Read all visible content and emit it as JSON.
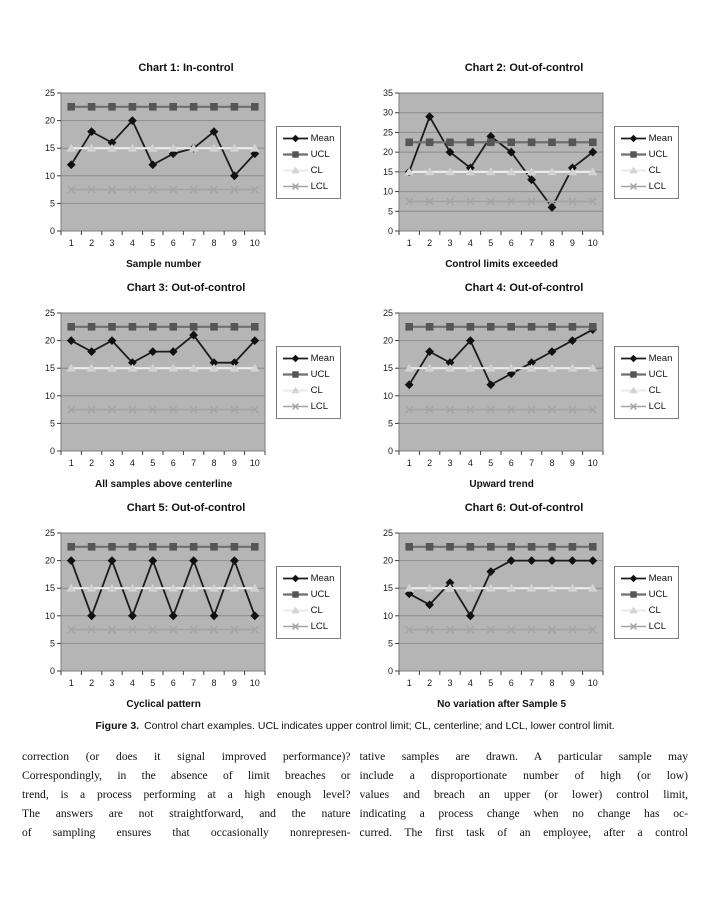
{
  "figure": {
    "caption_label": "Figure 3.",
    "caption_text": "Control chart examples. UCL indicates upper control limit; CL, centerline; and LCL, lower control limit."
  },
  "chart_style": {
    "plot_bg": "#b5b5b5",
    "grid": "#8c8c8c",
    "border": "#7d7d7d",
    "axis": "#3f3f3f",
    "tick_text": "#1a1a1a"
  },
  "legend": {
    "items": [
      {
        "label": "Mean",
        "marker": "diamond",
        "color": "#1c1c1c",
        "fill": "#111111",
        "lw": 1.8
      },
      {
        "label": "UCL",
        "marker": "square",
        "color": "#6f6f6f",
        "fill": "#565656",
        "lw": 2.2
      },
      {
        "label": "CL",
        "marker": "triangle",
        "color": "#ececec",
        "fill": "#d3d3d3",
        "lw": 2.2
      },
      {
        "label": "LCL",
        "marker": "x",
        "color": "#a4a4a4",
        "fill": "#a4a4a4",
        "lw": 1.6
      }
    ]
  },
  "chart_data": [
    {
      "type": "line",
      "title": "Chart 1: In-control",
      "xlabel": "Sample number",
      "x": [
        1,
        2,
        3,
        4,
        5,
        6,
        7,
        8,
        9,
        10
      ],
      "ylim": [
        0,
        25
      ],
      "ytick_step": 5,
      "grid": true,
      "legend_position": "right",
      "series": [
        {
          "name": "Mean",
          "values": [
            12,
            18,
            16,
            20,
            12,
            14,
            15,
            18,
            10,
            14
          ]
        },
        {
          "name": "UCL",
          "values": [
            22.5,
            22.5,
            22.5,
            22.5,
            22.5,
            22.5,
            22.5,
            22.5,
            22.5,
            22.5
          ]
        },
        {
          "name": "CL",
          "values": [
            15,
            15,
            15,
            15,
            15,
            15,
            15,
            15,
            15,
            15
          ]
        },
        {
          "name": "LCL",
          "values": [
            7.5,
            7.5,
            7.5,
            7.5,
            7.5,
            7.5,
            7.5,
            7.5,
            7.5,
            7.5
          ]
        }
      ]
    },
    {
      "type": "line",
      "title": "Chart 2: Out-of-control",
      "xlabel": "Control limits exceeded",
      "x": [
        1,
        2,
        3,
        4,
        5,
        6,
        7,
        8,
        9,
        10
      ],
      "ylim": [
        0,
        35
      ],
      "ytick_step": 5,
      "grid": true,
      "legend_position": "right",
      "series": [
        {
          "name": "Mean",
          "values": [
            15,
            29,
            20,
            16,
            24,
            20,
            13,
            6,
            16,
            20
          ]
        },
        {
          "name": "UCL",
          "values": [
            22.5,
            22.5,
            22.5,
            22.5,
            22.5,
            22.5,
            22.5,
            22.5,
            22.5,
            22.5
          ]
        },
        {
          "name": "CL",
          "values": [
            15,
            15,
            15,
            15,
            15,
            15,
            15,
            15,
            15,
            15
          ]
        },
        {
          "name": "LCL",
          "values": [
            7.5,
            7.5,
            7.5,
            7.5,
            7.5,
            7.5,
            7.5,
            7.5,
            7.5,
            7.5
          ]
        }
      ]
    },
    {
      "type": "line",
      "title": "Chart 3: Out-of-control",
      "xlabel": "All samples above centerline",
      "x": [
        1,
        2,
        3,
        4,
        5,
        6,
        7,
        8,
        9,
        10
      ],
      "ylim": [
        0,
        25
      ],
      "ytick_step": 5,
      "grid": true,
      "legend_position": "right",
      "series": [
        {
          "name": "Mean",
          "values": [
            20,
            18,
            20,
            16,
            18,
            18,
            21,
            16,
            16,
            20
          ]
        },
        {
          "name": "UCL",
          "values": [
            22.5,
            22.5,
            22.5,
            22.5,
            22.5,
            22.5,
            22.5,
            22.5,
            22.5,
            22.5
          ]
        },
        {
          "name": "CL",
          "values": [
            15,
            15,
            15,
            15,
            15,
            15,
            15,
            15,
            15,
            15
          ]
        },
        {
          "name": "LCL",
          "values": [
            7.5,
            7.5,
            7.5,
            7.5,
            7.5,
            7.5,
            7.5,
            7.5,
            7.5,
            7.5
          ]
        }
      ]
    },
    {
      "type": "line",
      "title": "Chart 4: Out-of-control",
      "xlabel": "Upward trend",
      "x": [
        1,
        2,
        3,
        4,
        5,
        6,
        7,
        8,
        9,
        10
      ],
      "ylim": [
        0,
        25
      ],
      "ytick_step": 5,
      "grid": true,
      "legend_position": "right",
      "series": [
        {
          "name": "Mean",
          "values": [
            12,
            18,
            16,
            20,
            12,
            14,
            16,
            18,
            20,
            22
          ]
        },
        {
          "name": "UCL",
          "values": [
            22.5,
            22.5,
            22.5,
            22.5,
            22.5,
            22.5,
            22.5,
            22.5,
            22.5,
            22.5
          ]
        },
        {
          "name": "CL",
          "values": [
            15,
            15,
            15,
            15,
            15,
            15,
            15,
            15,
            15,
            15
          ]
        },
        {
          "name": "LCL",
          "values": [
            7.5,
            7.5,
            7.5,
            7.5,
            7.5,
            7.5,
            7.5,
            7.5,
            7.5,
            7.5
          ]
        }
      ]
    },
    {
      "type": "line",
      "title": "Chart 5: Out-of-control",
      "xlabel": "Cyclical pattern",
      "x": [
        1,
        2,
        3,
        4,
        5,
        6,
        7,
        8,
        9,
        10
      ],
      "ylim": [
        0,
        25
      ],
      "ytick_step": 5,
      "grid": true,
      "legend_position": "right",
      "series": [
        {
          "name": "Mean",
          "values": [
            20,
            10,
            20,
            10,
            20,
            10,
            20,
            10,
            20,
            10
          ]
        },
        {
          "name": "UCL",
          "values": [
            22.5,
            22.5,
            22.5,
            22.5,
            22.5,
            22.5,
            22.5,
            22.5,
            22.5,
            22.5
          ]
        },
        {
          "name": "CL",
          "values": [
            15,
            15,
            15,
            15,
            15,
            15,
            15,
            15,
            15,
            15
          ]
        },
        {
          "name": "LCL",
          "values": [
            7.5,
            7.5,
            7.5,
            7.5,
            7.5,
            7.5,
            7.5,
            7.5,
            7.5,
            7.5
          ]
        }
      ]
    },
    {
      "type": "line",
      "title": "Chart 6: Out-of-control",
      "xlabel": "No variation after Sample 5",
      "x": [
        1,
        2,
        3,
        4,
        5,
        6,
        7,
        8,
        9,
        10
      ],
      "ylim": [
        0,
        25
      ],
      "ytick_step": 5,
      "grid": true,
      "legend_position": "right",
      "series": [
        {
          "name": "Mean",
          "values": [
            14,
            12,
            16,
            10,
            18,
            20,
            20,
            20,
            20,
            20
          ]
        },
        {
          "name": "UCL",
          "values": [
            22.5,
            22.5,
            22.5,
            22.5,
            22.5,
            22.5,
            22.5,
            22.5,
            22.5,
            22.5
          ]
        },
        {
          "name": "CL",
          "values": [
            15,
            15,
            15,
            15,
            15,
            15,
            15,
            15,
            15,
            15
          ]
        },
        {
          "name": "LCL",
          "values": [
            7.5,
            7.5,
            7.5,
            7.5,
            7.5,
            7.5,
            7.5,
            7.5,
            7.5,
            7.5
          ]
        }
      ]
    }
  ],
  "body_text": {
    "left_lines": [
      "correction (or does it signal improved performance)?",
      "Correspondingly, in the absence of limit breaches or",
      "trend, is a process performing at a high enough level?",
      "The answers are not straightforward, and the nature",
      "of sampling ensures that occasionally nonrepresen-"
    ],
    "right_lines": [
      "tative samples are drawn. A particular sample may",
      "include a disproportionate number of high (or low)",
      "values and breach an upper (or lower) control limit,",
      "indicating a process change when no change has oc-",
      "curred. The first task of an employee, after a control"
    ]
  }
}
